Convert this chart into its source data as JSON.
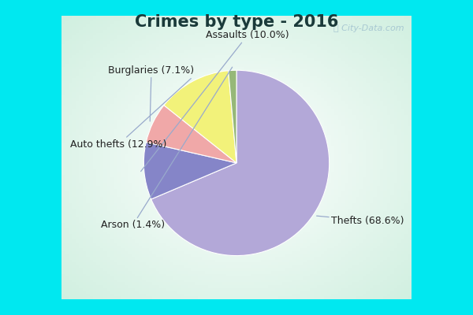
{
  "title": "Crimes by type - 2016",
  "labels": [
    "Thefts",
    "Assaults",
    "Burglaries",
    "Auto thefts",
    "Arson"
  ],
  "values": [
    68.6,
    10.0,
    7.1,
    12.9,
    1.4
  ],
  "colors": [
    "#b3a8d8",
    "#8585c8",
    "#f0a8a8",
    "#f2f27a",
    "#96b878"
  ],
  "bg_border": "#00e8f0",
  "bg_inner": "#d0ece0",
  "title_fontsize": 15,
  "label_fontsize": 9,
  "watermark": "ⓘ City-Data.com",
  "border_width": 8
}
